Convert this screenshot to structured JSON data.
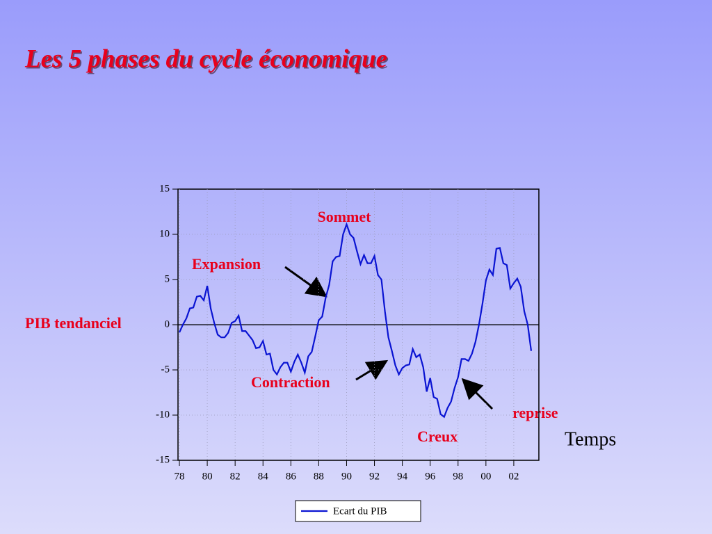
{
  "chart_data": {
    "type": "line",
    "title": "Les 5 phases du cycle économique",
    "annotations": {
      "peak": "Sommet",
      "expansion": "Expansion",
      "trend": "PIB tendanciel",
      "contraction": "Contraction",
      "recovery": "reprise",
      "trough": "Creux",
      "x_label": "Temps"
    },
    "x": [
      1978,
      1978.25,
      1978.5,
      1978.75,
      1979,
      1979.25,
      1979.5,
      1979.75,
      1980,
      1980.25,
      1980.5,
      1980.75,
      1981,
      1981.25,
      1981.5,
      1981.75,
      1982,
      1982.25,
      1982.5,
      1982.75,
      1983,
      1983.25,
      1983.5,
      1983.75,
      1984,
      1984.25,
      1984.5,
      1984.75,
      1985,
      1985.25,
      1985.5,
      1985.75,
      1986,
      1986.25,
      1986.5,
      1986.75,
      1987,
      1987.25,
      1987.5,
      1987.75,
      1988,
      1988.25,
      1988.5,
      1988.75,
      1989,
      1989.25,
      1989.5,
      1989.75,
      1990,
      1990.25,
      1990.5,
      1990.75,
      1991,
      1991.25,
      1991.5,
      1991.75,
      1992,
      1992.25,
      1992.5,
      1992.75,
      1993,
      1993.25,
      1993.5,
      1993.75,
      1994,
      1994.25,
      1994.5,
      1994.75,
      1995,
      1995.25,
      1995.5,
      1995.75,
      1996,
      1996.25,
      1996.5,
      1996.75,
      1997,
      1997.25,
      1997.5,
      1997.75,
      1998,
      1998.25,
      1998.5,
      1998.75,
      1999,
      1999.25,
      1999.5,
      1999.75,
      2000,
      2000.25,
      2000.5,
      2000.75,
      2001,
      2001.25,
      2001.5,
      2001.75,
      2002,
      2002.25,
      2002.5,
      2002.75,
      2003,
      2003.25
    ],
    "series": [
      {
        "name": "Ecart du PIB",
        "color": "#0a14d2",
        "values": [
          -0.85,
          0,
          0.7,
          1.8,
          1.9,
          3.1,
          3.2,
          2.7,
          4.3,
          1.8,
          0.2,
          -1.1,
          -1.4,
          -1.4,
          -0.9,
          0.2,
          0.4,
          1.0,
          -0.7,
          -0.7,
          -1.2,
          -1.7,
          -2.6,
          -2.5,
          -1.8,
          -3.3,
          -3.2,
          -5.0,
          -5.5,
          -4.7,
          -4.2,
          -4.2,
          -5.2,
          -4.1,
          -3.3,
          -4.2,
          -5.3,
          -3.5,
          -3.0,
          -1.3,
          0.5,
          0.9,
          3.0,
          4.4,
          7.0,
          7.5,
          7.6,
          10.0,
          11.1,
          10.0,
          9.6,
          8.1,
          6.7,
          7.7,
          6.8,
          6.8,
          7.6,
          5.5,
          5.0,
          1.5,
          -1.4,
          -2.9,
          -4.5,
          -5.5,
          -4.8,
          -4.5,
          -4.4,
          -2.7,
          -3.6,
          -3.3,
          -4.7,
          -7.4,
          -5.9,
          -8.0,
          -8.2,
          -9.9,
          -10.2,
          -9.2,
          -8.5,
          -7.0,
          -5.8,
          -3.8,
          -3.8,
          -4.0,
          -3.2,
          -1.9,
          0,
          2.3,
          4.9,
          6.1,
          5.5,
          8.4,
          8.5,
          6.8,
          6.6,
          4.0,
          4.6,
          5.1,
          4.2,
          1.5,
          0,
          -2.9
        ]
      }
    ],
    "xlim": [
      1977.9,
      2003.8
    ],
    "xticks": [
      {
        "value": 1978,
        "label": "78"
      },
      {
        "value": 1980,
        "label": "80"
      },
      {
        "value": 1982,
        "label": "82"
      },
      {
        "value": 1984,
        "label": "84"
      },
      {
        "value": 1986,
        "label": "86"
      },
      {
        "value": 1988,
        "label": "88"
      },
      {
        "value": 1990,
        "label": "90"
      },
      {
        "value": 1992,
        "label": "92"
      },
      {
        "value": 1994,
        "label": "94"
      },
      {
        "value": 1996,
        "label": "96"
      },
      {
        "value": 1998,
        "label": "98"
      },
      {
        "value": 2000,
        "label": "00"
      },
      {
        "value": 2002,
        "label": "02"
      }
    ],
    "ylim": [
      -15,
      15
    ],
    "yticks": [
      15,
      10,
      5,
      0,
      -5,
      -10,
      -15
    ],
    "grid": true
  }
}
